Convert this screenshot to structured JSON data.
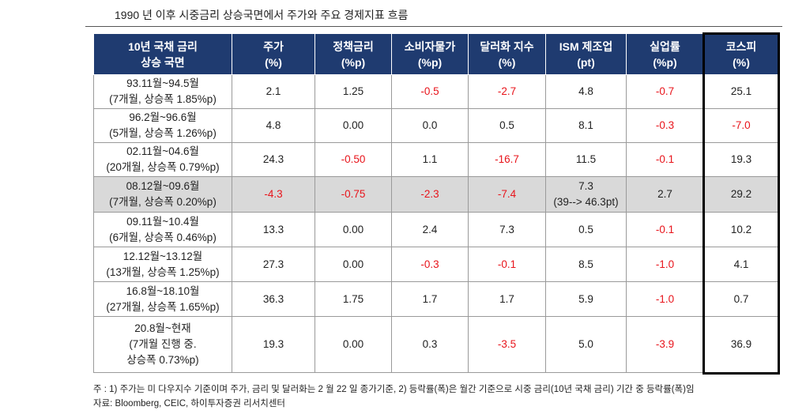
{
  "title": "1990 년 이후 시중금리 상승국면에서 주가와 주요 경제지표 흐름",
  "table": {
    "headers": [
      "10년 국채 금리\n상승 국면",
      "주가\n(%)",
      "정책금리\n(%p)",
      "소비자물가\n(%p)",
      "달러화 지수\n(%)",
      "ISM 제조업\n(pt)",
      "실업률\n(%p)",
      "코스피\n(%)"
    ],
    "rows": [
      [
        "93.11월~94.5월\n(7개월, 상승폭 1.85%p)",
        "2.1",
        "1.25",
        "-0.5",
        "-2.7",
        "4.8",
        "-0.7",
        "25.1"
      ],
      [
        "96.2월~96.6월\n(5개월, 상승폭 1.26%p)",
        "4.8",
        "0.00",
        "0.0",
        "0.5",
        "8.1",
        "-0.3",
        "-7.0"
      ],
      [
        "02.11월~04.6월\n(20개월, 상승폭 0.79%p)",
        "24.3",
        "-0.50",
        "1.1",
        "-16.7",
        "11.5",
        "-0.1",
        "19.3"
      ],
      [
        "08.12월~09.6월\n(7개월, 상승폭 0.20%p)",
        "-4.3",
        "-0.75",
        "-2.3",
        "-7.4",
        "7.3\n(39--> 46.3pt)",
        "2.7",
        "29.2"
      ],
      [
        "09.11월~10.4월\n(6개월, 상승폭 0.46%p)",
        "13.3",
        "0.00",
        "2.4",
        "7.3",
        "0.5",
        "-0.1",
        "10.2"
      ],
      [
        "12.12월~13.12월\n(13개월, 상승폭 1.25%p)",
        "27.3",
        "0.00",
        "-0.3",
        "-0.1",
        "8.5",
        "-1.0",
        "4.1"
      ],
      [
        "16.8월~18.10월\n(27개월, 상승폭 1.65%p)",
        "36.3",
        "1.75",
        "1.7",
        "1.7",
        "5.9",
        "-1.0",
        "0.7"
      ],
      [
        "20.8월~현재\n(7개월 진행 중.\n상승폭 0.73%p)",
        "19.3",
        "0.00",
        "0.3",
        "-3.5",
        "5.0",
        "-3.9",
        "36.9"
      ]
    ]
  },
  "notes": [
    "주 : 1) 주가는 미 다우지수 기준이며 주가, 금리 및 달러화는 2 월 22 일 종가기준, 2) 등락률(폭)은 월간 기준으로 시중 금리(10년 국채 금리) 기간 중 등락률(폭)임",
    "자료: Bloomberg, CEIC, 하이투자증권 리서치센터"
  ]
}
